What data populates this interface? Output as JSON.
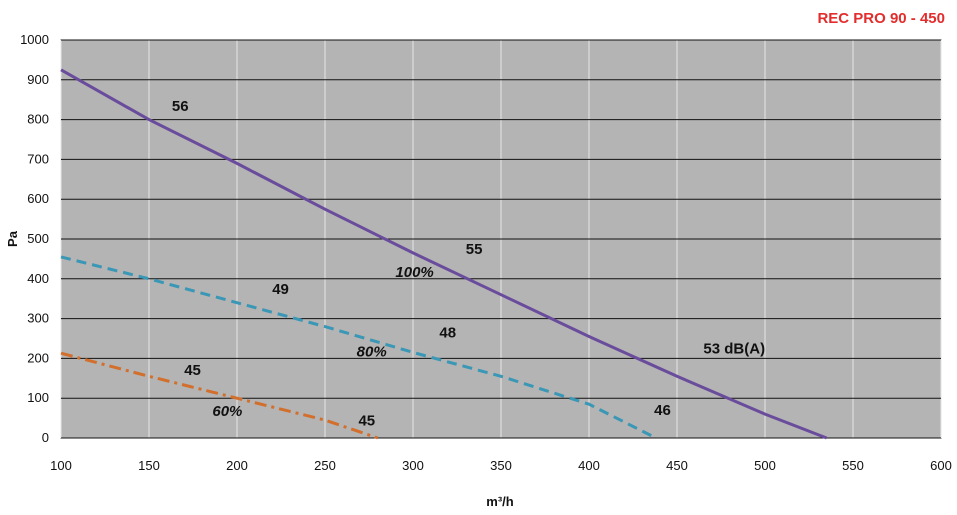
{
  "chart_data": {
    "type": "line",
    "title": "REC PRO 90  - 450",
    "xlabel": "m³/h",
    "ylabel": "Pa",
    "xlim": [
      100,
      600
    ],
    "ylim": [
      0,
      1000
    ],
    "xticks": [
      100,
      150,
      200,
      250,
      300,
      350,
      400,
      450,
      500,
      550,
      600
    ],
    "yticks": [
      0,
      100,
      200,
      300,
      400,
      500,
      600,
      700,
      800,
      900,
      1000
    ],
    "grid": true,
    "series": [
      {
        "name": "100%",
        "color": "#6a4c9c",
        "style": "solid",
        "points": [
          [
            100,
            925
          ],
          [
            150,
            800
          ],
          [
            200,
            690
          ],
          [
            250,
            575
          ],
          [
            300,
            465
          ],
          [
            350,
            360
          ],
          [
            400,
            255
          ],
          [
            450,
            155
          ],
          [
            500,
            60
          ],
          [
            535,
            0
          ]
        ],
        "sound_labels": [
          {
            "text": "56",
            "x": 163,
            "y": 822
          },
          {
            "text": "55",
            "x": 330,
            "y": 462
          },
          {
            "text": "53 dB(A)",
            "x": 465,
            "y": 212
          }
        ]
      },
      {
        "name": "80%",
        "color": "#3a97b5",
        "style": "dashed",
        "points": [
          [
            100,
            455
          ],
          [
            150,
            400
          ],
          [
            200,
            340
          ],
          [
            250,
            280
          ],
          [
            300,
            215
          ],
          [
            350,
            155
          ],
          [
            400,
            85
          ],
          [
            438,
            0
          ]
        ],
        "sound_labels": [
          {
            "text": "49",
            "x": 220,
            "y": 362
          },
          {
            "text": "48",
            "x": 315,
            "y": 252
          },
          {
            "text": "46",
            "x": 437,
            "y": 58
          }
        ]
      },
      {
        "name": "60%",
        "color": "#d26f2c",
        "style": "dashdot",
        "points": [
          [
            100,
            213
          ],
          [
            150,
            155
          ],
          [
            200,
            100
          ],
          [
            250,
            45
          ],
          [
            280,
            0
          ]
        ],
        "sound_labels": [
          {
            "text": "45",
            "x": 170,
            "y": 158
          },
          {
            "text": "45",
            "x": 269,
            "y": 32
          }
        ]
      }
    ],
    "annotations": [
      {
        "text": "100%",
        "x": 290,
        "y": 405
      },
      {
        "text": "80%",
        "x": 268,
        "y": 205
      },
      {
        "text": "60%",
        "x": 186,
        "y": 55
      }
    ]
  }
}
